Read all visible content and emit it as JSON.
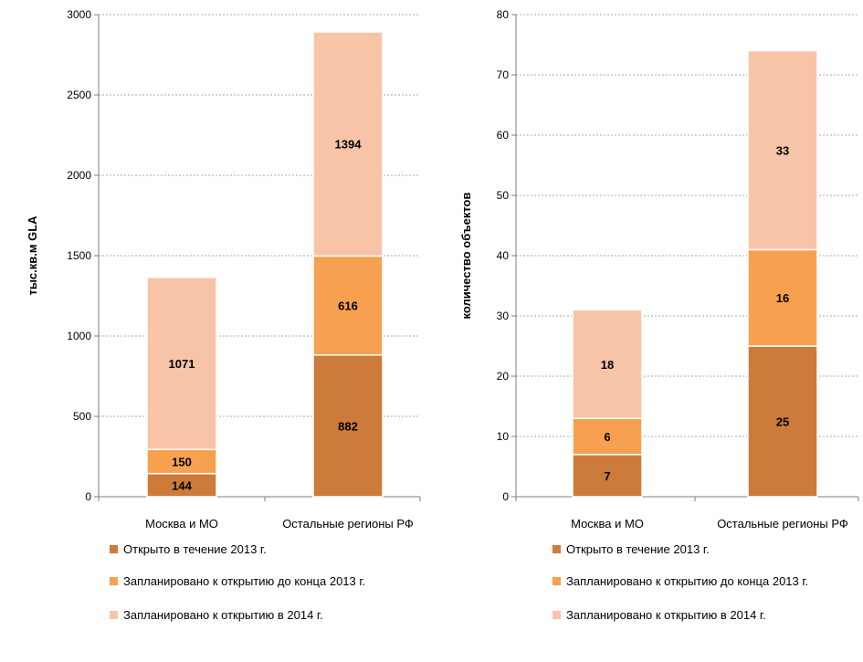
{
  "chart_data": [
    {
      "type": "bar",
      "stacked": true,
      "categories": [
        "Москва и МО",
        "Остальные регионы РФ"
      ],
      "ylabel": "тыс.кв.м GLA",
      "ylim": [
        0,
        3000
      ],
      "yticks": [
        0,
        500,
        1000,
        1500,
        2000,
        2500,
        3000
      ],
      "grid": true,
      "legend_position": "bottom",
      "series": [
        {
          "name": "Открыто в течение 2013 г.",
          "values": [
            144,
            882
          ],
          "color": "#cc7b3a"
        },
        {
          "name": "Запланировано к открытию до конца 2013 г.",
          "values": [
            150,
            616
          ],
          "color": "#f7a050"
        },
        {
          "name": "Запланировано к открытию в 2014 г.",
          "values": [
            1071,
            1394
          ],
          "color": "#f8c4a8"
        }
      ]
    },
    {
      "type": "bar",
      "stacked": true,
      "categories": [
        "Москва и МО",
        "Остальные регионы РФ"
      ],
      "ylabel": "количество объектов",
      "ylim": [
        0,
        80
      ],
      "yticks": [
        0,
        10,
        20,
        30,
        40,
        50,
        60,
        70,
        80
      ],
      "grid": true,
      "legend_position": "bottom",
      "series": [
        {
          "name": "Открыто в течение 2013 г.",
          "values": [
            7,
            25
          ],
          "color": "#cc7b3a"
        },
        {
          "name": "Запланировано к открытию до конца 2013 г.",
          "values": [
            6,
            16
          ],
          "color": "#f7a050"
        },
        {
          "name": "Запланировано к открытию в 2014 г.",
          "values": [
            18,
            33
          ],
          "color": "#f8c4a8"
        }
      ]
    }
  ]
}
